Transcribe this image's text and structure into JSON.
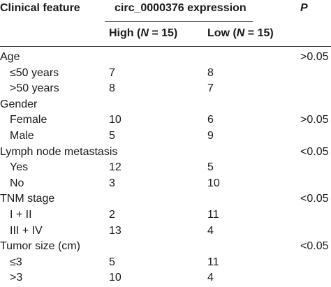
{
  "header": {
    "col_feature": "Clinical feature",
    "col_expression": "circ_0000376 expression",
    "col_p": "P",
    "col_high": "High (N = 15)",
    "col_low": "Low (N = 15)"
  },
  "rows": [
    {
      "label": "Age",
      "high": "",
      "low": "",
      "p": ">0.05",
      "indent": false
    },
    {
      "label": "≤50 years",
      "high": "7",
      "low": "8",
      "p": "",
      "indent": true
    },
    {
      "label": ">50 years",
      "high": "8",
      "low": "7",
      "p": "",
      "indent": true
    },
    {
      "label": "Gender",
      "high": "",
      "low": "",
      "p": "",
      "indent": false
    },
    {
      "label": "Female",
      "high": "10",
      "low": "6",
      "p": ">0.05",
      "indent": true
    },
    {
      "label": "Male",
      "high": "5",
      "low": "9",
      "p": "",
      "indent": true
    },
    {
      "label": "Lymph node metastasis",
      "high": "",
      "low": "",
      "p": "<0.05",
      "indent": false
    },
    {
      "label": "Yes",
      "high": "12",
      "low": "5",
      "p": "",
      "indent": true
    },
    {
      "label": "No",
      "high": "3",
      "low": "10",
      "p": "",
      "indent": true
    },
    {
      "label": "TNM stage",
      "high": "",
      "low": "",
      "p": "<0.05",
      "indent": false
    },
    {
      "label": "I + II",
      "high": "2",
      "low": "11",
      "p": "",
      "indent": true
    },
    {
      "label": "III + IV",
      "high": "13",
      "low": "4",
      "p": "",
      "indent": true
    },
    {
      "label": "Tumor size (cm)",
      "high": "",
      "low": "",
      "p": "<0.05",
      "indent": false
    },
    {
      "label": "≤3",
      "high": "5",
      "low": "11",
      "p": "",
      "indent": true
    },
    {
      "label": ">3",
      "high": "10",
      "low": "4",
      "p": "",
      "indent": true
    }
  ]
}
